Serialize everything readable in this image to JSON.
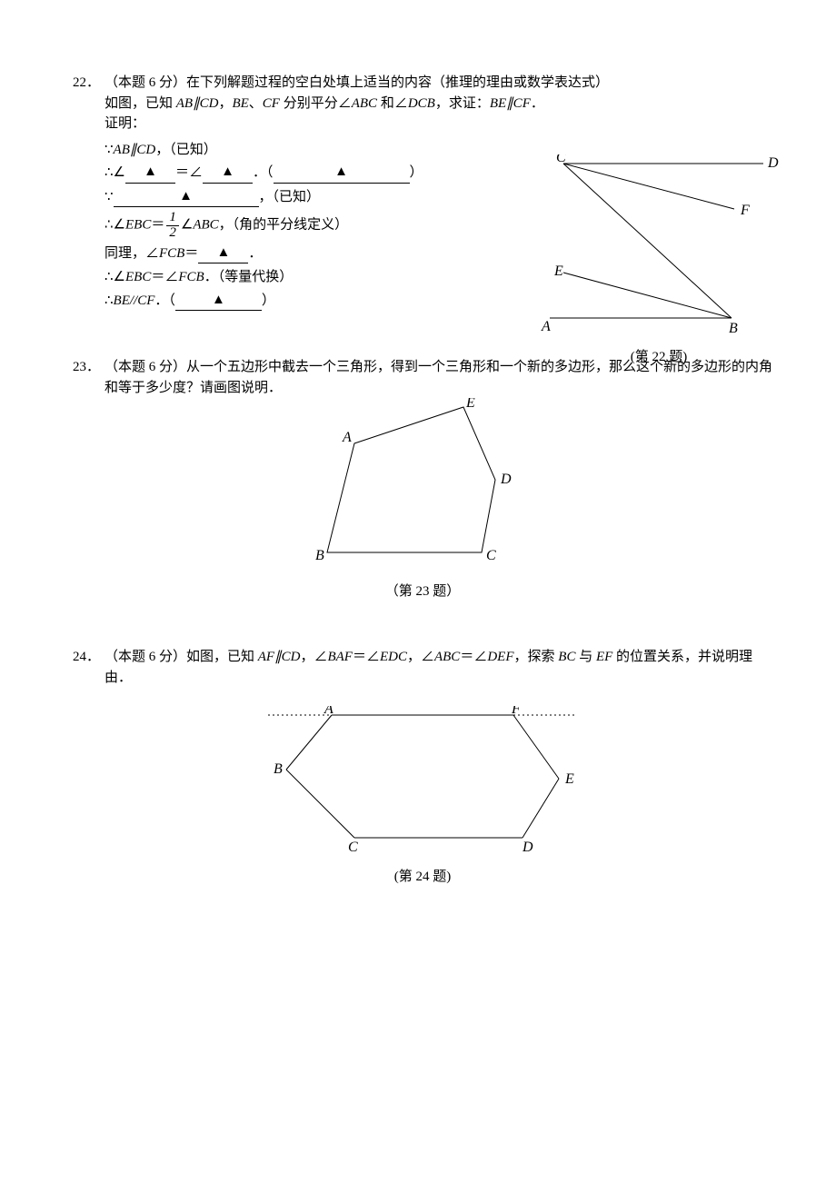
{
  "q22": {
    "number": "22．",
    "intro": "（本题 6 分）在下列解题过程的空白处填上适当的内容（推理的理由或数学表达式）",
    "line2a": "如图，已知 ",
    "abcd": "AB∥CD",
    "line2b": "，",
    "be": "BE",
    "sep": "、",
    "cf": "CF",
    "line2c": " 分别平分∠",
    "abc": "ABC",
    "and": " 和∠",
    "dcb": "DCB",
    "prove": "，求证：",
    "becf": "BE∥CF",
    "dot": "．",
    "proof_label": "证明：",
    "p1a": "∵",
    "p1b": "AB∥CD",
    "p1c": "，（已知）",
    "p2a": "∴∠",
    "p2eq": "＝∠",
    "p2end": "．（",
    "p2close": "）",
    "p3a": "∵",
    "p3b": "，（已知）",
    "p4a": "∴∠",
    "p4ebc": "EBC",
    "p4eq": "＝",
    "p4ang": "∠",
    "p4abc": "ABC",
    "p4reason": "，（角的平分线定义）",
    "p5a": "同理，∠",
    "p5fcb": "FCB",
    "p5eq": "＝",
    "p5dot": "．",
    "p6a": "∴∠",
    "p6ebc": "EBC",
    "p6eq": "＝∠",
    "p6fcb": "FCB",
    "p6reason": "．（等量代换）",
    "p7a": "∴",
    "p7becf": "BE",
    "p7par": "//",
    "p7cf": "CF",
    "p7open": "．（",
    "p7close": "）",
    "caption": "(第 22 题)",
    "frac_n": "1",
    "frac_d": "2",
    "labels": {
      "A": "A",
      "B": "B",
      "C": "C",
      "D": "D",
      "E": "E",
      "F": "F"
    },
    "fig": {
      "CD": [
        30,
        10,
        250,
        10
      ],
      "CB": [
        30,
        10,
        215,
        180
      ],
      "CF": [
        30,
        10,
        218,
        60
      ],
      "AB": [
        15,
        180,
        215,
        180
      ],
      "EB": [
        30,
        130,
        215,
        180
      ]
    }
  },
  "q23": {
    "number": "23．",
    "text": "（本题 6 分）从一个五边形中截去一个三角形，得到一个三角形和一个新的多边形，那么这个新的多边形的内角和等于多少度？请画图说明．",
    "caption": "（第 23 题）",
    "labels": {
      "A": "A",
      "B": "B",
      "C": "C",
      "D": "D",
      "E": "E"
    },
    "poly": "55,50 175,10 210,90 195,170 25,170"
  },
  "q24": {
    "number": "24．",
    "t1": "（本题 6 分）如图，已知 ",
    "afcd": "AF∥CD",
    "t2": "，∠",
    "baf": "BAF",
    "t3": "＝∠",
    "edc": "EDC",
    "t4": "，∠",
    "abc": "ABC",
    "t5": "＝∠",
    "def": "DEF",
    "t6": "，探索 ",
    "bc": "BC",
    "t7": " 与 ",
    "ef": "EF",
    "t8": " 的位置关系，并说明理由．",
    "caption": "(第 24 题)",
    "labels": {
      "A": "A",
      "B": "B",
      "C": "C",
      "D": "D",
      "E": "E",
      "F": "F"
    },
    "AF": [
      80,
      10,
      280,
      10
    ],
    "AB": [
      80,
      10,
      30,
      70
    ],
    "BC": [
      30,
      70,
      105,
      145
    ],
    "CD": [
      105,
      145,
      290,
      145
    ],
    "DE": [
      290,
      145,
      330,
      80
    ],
    "EF": [
      330,
      80,
      280,
      10
    ],
    "dashAF": [
      10,
      10,
      350,
      10
    ]
  }
}
